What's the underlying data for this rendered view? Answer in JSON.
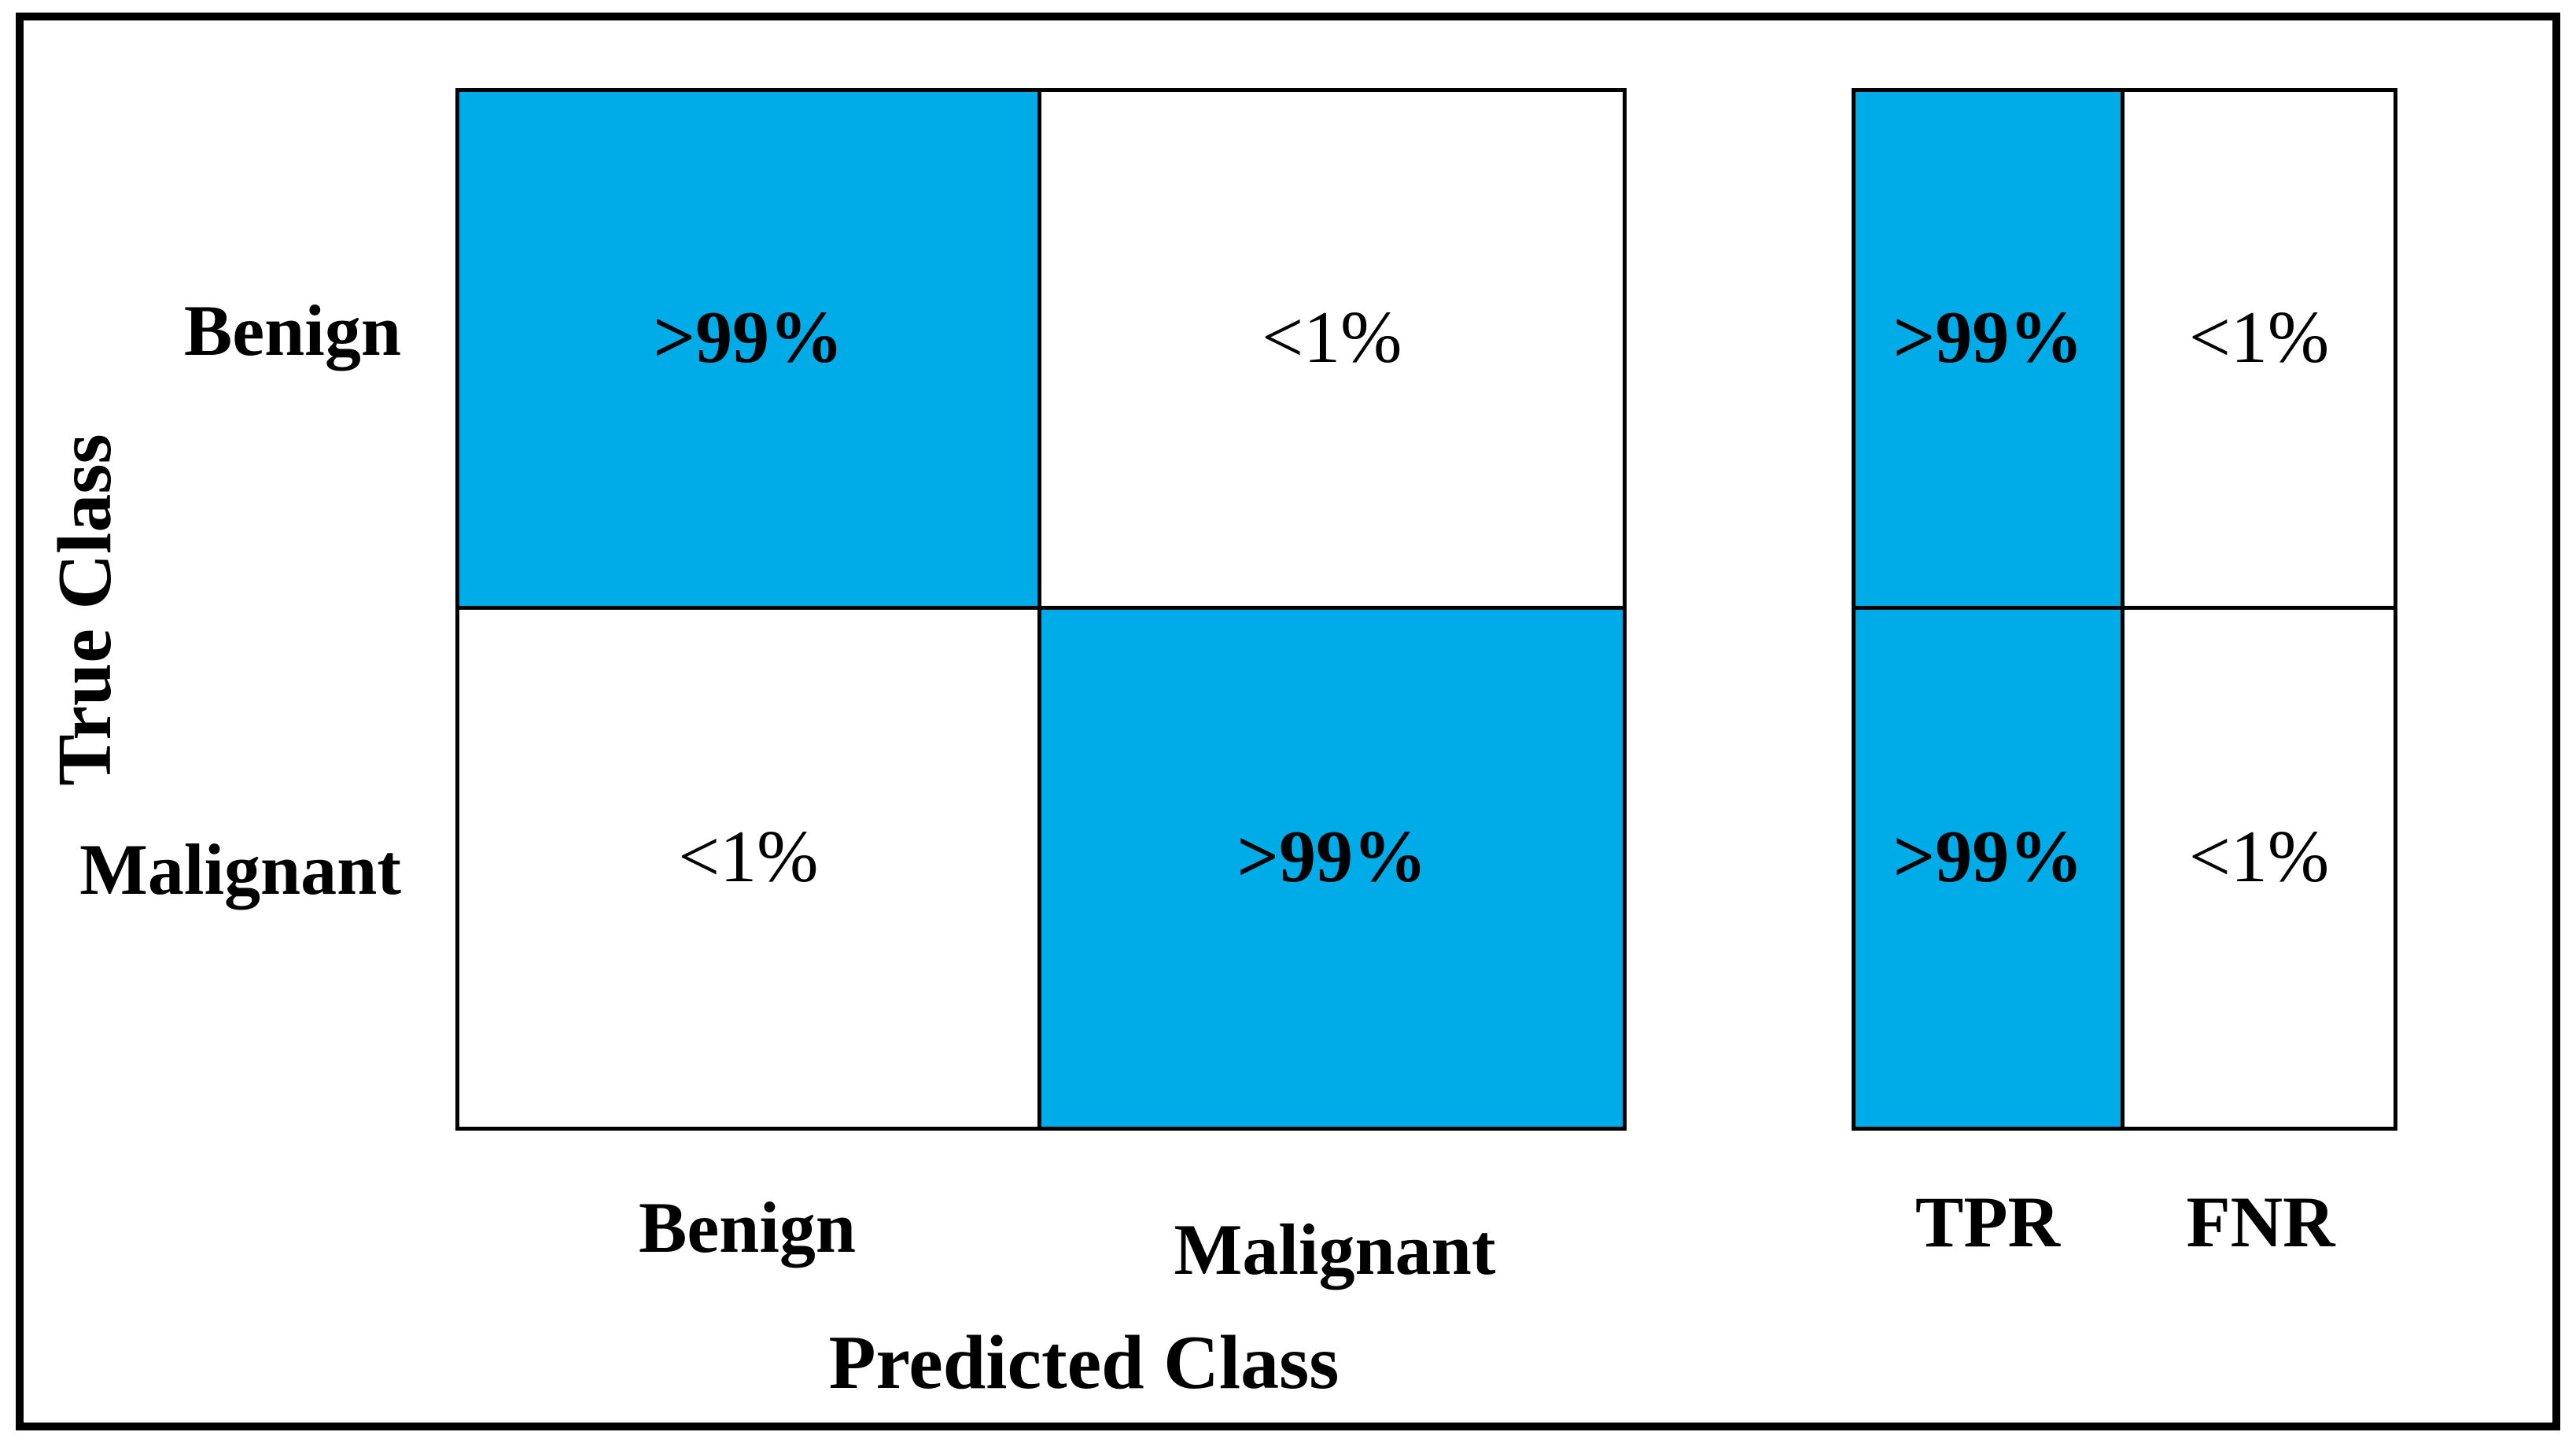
{
  "colors": {
    "highlight": "#00ACE8",
    "line": "#000000",
    "background": "#FFFFFF"
  },
  "chart_data": {
    "type": "heatmap",
    "title": "",
    "x_label": "Predicted Class",
    "y_label": "True Class",
    "row_labels": [
      "Benign",
      "Malignant"
    ],
    "col_labels": [
      "Benign",
      "Malignant"
    ],
    "cells": [
      [
        ">99%",
        "<1%"
      ],
      [
        "<1%",
        ">99%"
      ]
    ],
    "highlighted_cells": [
      [
        true,
        false
      ],
      [
        false,
        true
      ]
    ],
    "summary_panel": {
      "col_labels": [
        "TPR",
        "FNR"
      ],
      "cells": [
        [
          ">99%",
          "<1%"
        ],
        [
          ">99%",
          "<1%"
        ]
      ],
      "highlighted_cells": [
        [
          true,
          false
        ],
        [
          true,
          false
        ]
      ]
    },
    "legend": "off",
    "grid": "on"
  }
}
